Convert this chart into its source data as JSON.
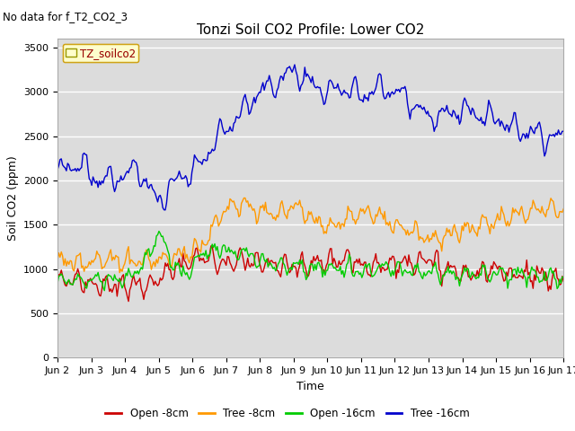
{
  "title": "Tonzi Soil CO2 Profile: Lower CO2",
  "subtitle": "No data for f_T2_CO2_3",
  "ylabel": "Soil CO2 (ppm)",
  "xlabel": "Time",
  "legend_label": "TZ_soilco2",
  "ylim": [
    0,
    3600
  ],
  "yticks": [
    0,
    500,
    1000,
    1500,
    2000,
    2500,
    3000,
    3500
  ],
  "background_color": "#dcdcdc",
  "plot_bg_color": "#dcdcdc",
  "series_labels": [
    "Open -8cm",
    "Tree -8cm",
    "Open -16cm",
    "Tree -16cm"
  ],
  "series_colors": [
    "#cc0000",
    "#ff9900",
    "#00cc00",
    "#0000cc"
  ],
  "xtick_labels": [
    "Jun 2",
    "Jun 3",
    "Jun 4",
    "Jun 5",
    "Jun 6",
    "Jun 7",
    "Jun 8",
    "Jun 9",
    "Jun 10",
    "Jun 11",
    "Jun 12",
    "Jun 13",
    "Jun 14",
    "Jun 15",
    "Jun 16",
    "Jun 17"
  ],
  "n_points": 400,
  "title_fontsize": 11,
  "axis_fontsize": 9,
  "tick_fontsize": 8
}
